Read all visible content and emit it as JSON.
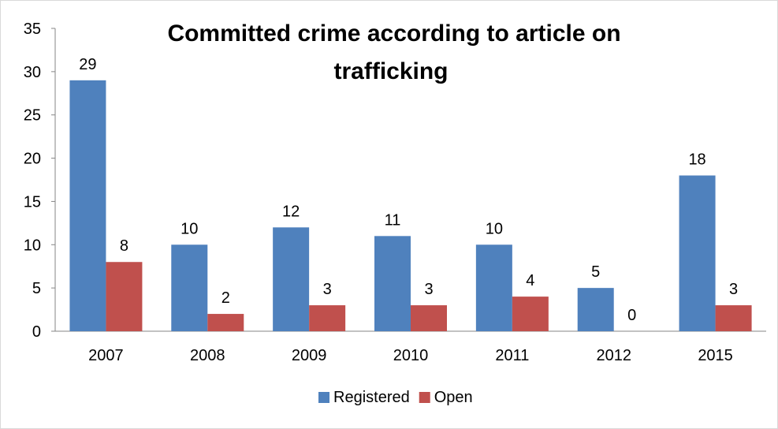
{
  "chart_data": {
    "type": "bar",
    "title_lines": [
      "Committed crime according to article on",
      "trafficking"
    ],
    "categories": [
      "2007",
      "2008",
      "2009",
      "2010",
      "2011",
      "2012",
      "2015"
    ],
    "series": [
      {
        "name": "Registered",
        "color": "#4f81bd",
        "values": [
          29,
          10,
          12,
          11,
          10,
          5,
          18
        ]
      },
      {
        "name": "Open",
        "color": "#c0504d",
        "values": [
          8,
          2,
          3,
          3,
          4,
          0,
          3
        ]
      }
    ],
    "yticks": [
      "0",
      "5",
      "10",
      "15",
      "20",
      "25",
      "30",
      "35"
    ],
    "ylim": [
      0,
      35
    ],
    "grid": false,
    "legend_position": "bottom"
  }
}
